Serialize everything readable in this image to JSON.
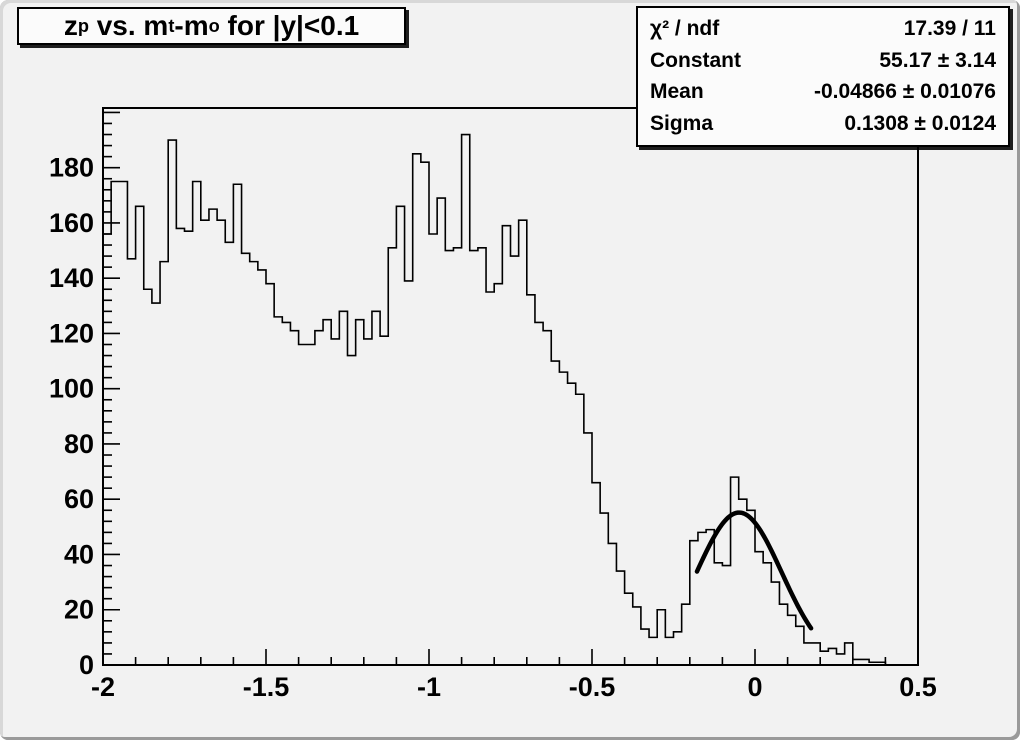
{
  "title": {
    "segments": [
      "z",
      "p",
      " vs. m",
      "t",
      "-m",
      "o",
      " for |y|<0.1"
    ]
  },
  "stats": {
    "rows": [
      {
        "label": "χ² / ndf",
        "value": "17.39 / 11"
      },
      {
        "label": "Constant",
        "value": "55.17 ± 3.14"
      },
      {
        "label": "Mean",
        "value": "-0.04866 ± 0.01076"
      },
      {
        "label": "Sigma",
        "value": "0.1308 ± 0.0124"
      }
    ]
  },
  "chart_data": {
    "type": "bar",
    "subtype": "histogram-step",
    "title": "z_p vs. m_t-m_o for |y|<0.1",
    "xlabel": "",
    "ylabel": "",
    "xlim": [
      -2.0,
      0.5
    ],
    "ylim": [
      0,
      201.6
    ],
    "x_start": -2.0,
    "bin_width": 0.025,
    "values": [
      156,
      175,
      175,
      147,
      166,
      136,
      131,
      146,
      190,
      158,
      157,
      175,
      161,
      165,
      161,
      153,
      174,
      149,
      146,
      143,
      138,
      126,
      124,
      121,
      116,
      116,
      121,
      125,
      118,
      128,
      112,
      125,
      118,
      128,
      119,
      151,
      166,
      139,
      185,
      182,
      156,
      169,
      150,
      151,
      192,
      150,
      151,
      135,
      138,
      159,
      148,
      161,
      134,
      124,
      121,
      110,
      106,
      102,
      98,
      84,
      66,
      55,
      44,
      34,
      26,
      21,
      13,
      10,
      20,
      10,
      12,
      22,
      45,
      48,
      49,
      37,
      36,
      68,
      60,
      56,
      41,
      37,
      30,
      22,
      18,
      14,
      8,
      8,
      5,
      6,
      4,
      8,
      2,
      2,
      1,
      1,
      0,
      0,
      0,
      0
    ],
    "x_ticks": [
      -2,
      -1.5,
      -1,
      -0.5,
      0,
      0.5
    ],
    "x_tick_labels": [
      "-2",
      "-1.5",
      "-1",
      "-0.5",
      "0",
      "0.5"
    ],
    "x_minor_step": 0.1,
    "y_major_step": 20,
    "y_minor_step": 4,
    "y_tick_labels": [
      "0",
      "20",
      "40",
      "60",
      "80",
      "100",
      "120",
      "140",
      "160",
      "180"
    ],
    "grid": false,
    "legend": null,
    "fit": {
      "type": "gaussian",
      "constant": 55.17,
      "mean": -0.04866,
      "sigma": 0.1308,
      "draw_range": [
        -0.178,
        0.172
      ]
    },
    "colors": {
      "histogram_line": "#000000",
      "fit_line": "#000000",
      "frame_line": "#000000",
      "canvas_bg": "#f2f2f2",
      "box_bg": "#fbfbfb",
      "text": "#000000"
    }
  }
}
